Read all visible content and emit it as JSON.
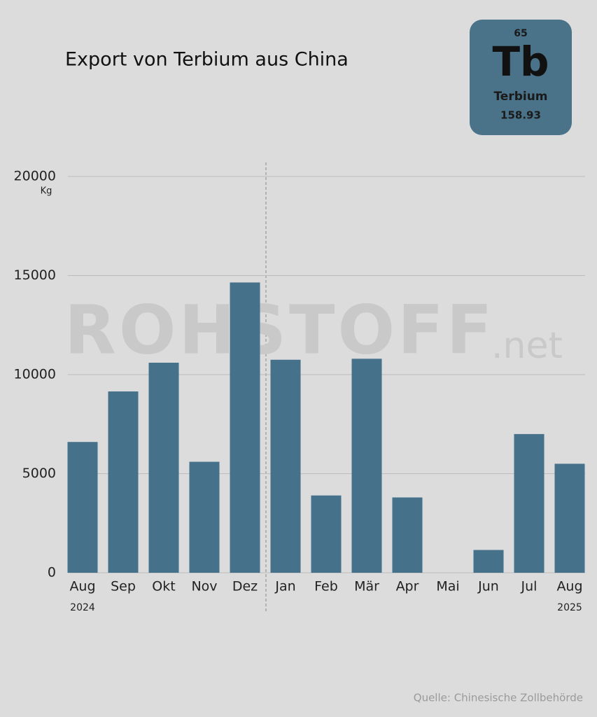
{
  "chart_data": {
    "type": "bar",
    "title": "Export von Terbium aus China",
    "y_unit": "Kg",
    "categories": [
      "Aug",
      "Sep",
      "Okt",
      "Nov",
      "Dez",
      "Jan",
      "Feb",
      "Mär",
      "Apr",
      "Mai",
      "Jun",
      "Jul",
      "Aug"
    ],
    "values": [
      6600,
      9150,
      10600,
      5600,
      14650,
      10750,
      3900,
      10800,
      3800,
      0,
      1150,
      7000,
      5500
    ],
    "color": "#46718a",
    "ylim": [
      0,
      20000
    ],
    "yticks": [
      0,
      5000,
      10000,
      15000,
      20000
    ],
    "grid": true,
    "years": [
      "2024",
      "2025"
    ],
    "source": "Quelle: Chinesische Zollbehörde"
  },
  "watermark": {
    "main": "ROHSTOFF",
    "suffix": ".net"
  },
  "element": {
    "number": "65",
    "symbol": "Tb",
    "name": "Terbium",
    "mass": "158.93"
  }
}
